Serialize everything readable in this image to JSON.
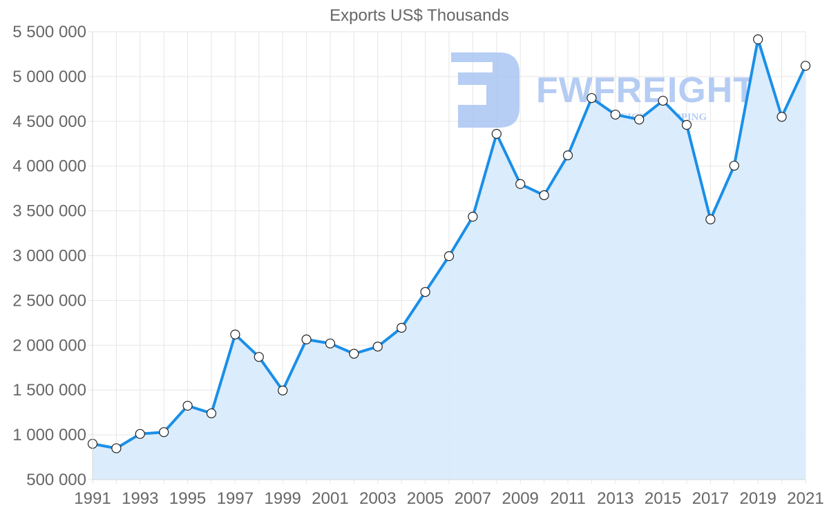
{
  "chart_data": {
    "type": "line",
    "title": "Exports US$ Thousands",
    "xlabel": "",
    "ylabel": "",
    "x": [
      1991,
      1992,
      1993,
      1994,
      1995,
      1996,
      1997,
      1998,
      1999,
      2000,
      2001,
      2002,
      2003,
      2004,
      2005,
      2006,
      2007,
      2008,
      2009,
      2010,
      2011,
      2012,
      2013,
      2014,
      2015,
      2016,
      2017,
      2018,
      2019,
      2020,
      2021
    ],
    "x_tick_labels": [
      "1991",
      "1993",
      "1995",
      "1997",
      "1999",
      "2001",
      "2003",
      "2005",
      "2007",
      "2009",
      "2011",
      "2013",
      "2015",
      "2017",
      "2019",
      "2021"
    ],
    "series": [
      {
        "name": "Exports US$ Thousands",
        "values": [
          900000,
          850000,
          1010000,
          1030000,
          1325000,
          1240000,
          2120000,
          1870000,
          1495000,
          2065000,
          2020000,
          1905000,
          1985000,
          2195000,
          2595000,
          2995000,
          3435000,
          4360000,
          3800000,
          3675000,
          4120000,
          4760000,
          4575000,
          4520000,
          4730000,
          4460000,
          3405000,
          4005000,
          5415000,
          4550000,
          5120000
        ],
        "line_color": "#1a8fe8",
        "fill_color": "#d9ebfc",
        "marker_fill": "#ffffff",
        "marker_stroke": "#222222"
      }
    ],
    "ylim": [
      500000,
      5500000
    ],
    "y_tick_values": [
      500000,
      1000000,
      1500000,
      2000000,
      2500000,
      3000000,
      3500000,
      4000000,
      4500000,
      5000000,
      5500000
    ],
    "y_tick_labels": [
      "500 000",
      "1 000 000",
      "1 500 000",
      "2 000 000",
      "2 500 000",
      "3 000 000",
      "3 500 000",
      "4 000 000",
      "4 500 000",
      "5 000 000",
      "5 500 000"
    ],
    "grid": true,
    "legend": "none",
    "area_fill": true
  },
  "watermark": {
    "brand": "FWFREIGHT",
    "tagline": "FREIGHT SHIPPING",
    "color": "#a9c4f2"
  }
}
